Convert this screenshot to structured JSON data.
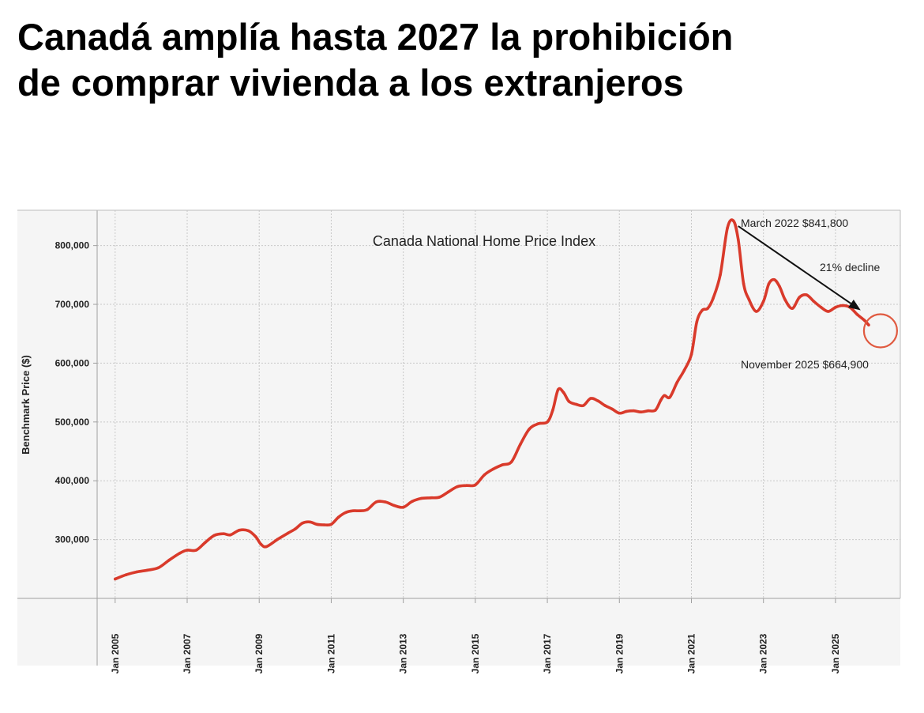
{
  "headline": {
    "line1": "Canadá amplía hasta 2027 la prohibición",
    "line2": "de comprar vivienda a los extranjeros"
  },
  "colors": {
    "series": "#d93a2b",
    "panel": "#f5f5f5",
    "grid": "#c8c8c8",
    "axis": "#a0a0a0",
    "text": "#222222",
    "annotation_circle": "#e05a40"
  },
  "chart_data": {
    "type": "line",
    "title": "Canada National Home Price Index",
    "xlabel": "",
    "ylabel": "Benchmark Price ($)",
    "ylim": [
      200000,
      860000
    ],
    "yticks": [
      300000,
      400000,
      500000,
      600000,
      700000,
      800000
    ],
    "ytick_labels": [
      "300,000",
      "400,000",
      "500,000",
      "600,000",
      "700,000",
      "800,000"
    ],
    "xlim": [
      2004.5,
      2026.8
    ],
    "xticks": [
      2005,
      2007,
      2009,
      2011,
      2013,
      2015,
      2017,
      2019,
      2021,
      2023,
      2025
    ],
    "xtick_labels": [
      "Jan 2005",
      "Jan 2007",
      "Jan 2009",
      "Jan 2011",
      "Jan 2013",
      "Jan 2015",
      "Jan 2017",
      "Jan 2019",
      "Jan 2021",
      "Jan 2023",
      "Jan 2025"
    ],
    "grid": true,
    "series": [
      {
        "name": "Benchmark Price",
        "x": [
          2005.0,
          2005.3,
          2005.6,
          2005.9,
          2006.2,
          2006.5,
          2006.8,
          2007.0,
          2007.25,
          2007.5,
          2007.75,
          2008.0,
          2008.2,
          2008.45,
          2008.7,
          2008.9,
          2009.05,
          2009.2,
          2009.5,
          2009.8,
          2010.0,
          2010.2,
          2010.4,
          2010.6,
          2010.8,
          2011.0,
          2011.2,
          2011.4,
          2011.6,
          2011.8,
          2012.0,
          2012.25,
          2012.5,
          2012.75,
          2013.0,
          2013.25,
          2013.5,
          2013.75,
          2014.0,
          2014.25,
          2014.5,
          2014.75,
          2015.0,
          2015.25,
          2015.5,
          2015.75,
          2016.0,
          2016.25,
          2016.5,
          2016.75,
          2017.0,
          2017.15,
          2017.3,
          2017.45,
          2017.6,
          2017.8,
          2018.0,
          2018.2,
          2018.4,
          2018.6,
          2018.8,
          2019.0,
          2019.2,
          2019.4,
          2019.6,
          2019.8,
          2020.0,
          2020.15,
          2020.25,
          2020.4,
          2020.6,
          2020.8,
          2021.0,
          2021.15,
          2021.3,
          2021.45,
          2021.6,
          2021.8,
          2022.0,
          2022.17,
          2022.3,
          2022.45,
          2022.6,
          2022.8,
          2023.0,
          2023.15,
          2023.3,
          2023.45,
          2023.6,
          2023.8,
          2024.0,
          2024.2,
          2024.4,
          2024.6,
          2024.8,
          2025.0,
          2025.2,
          2025.4,
          2025.6,
          2025.8,
          2025.92
        ],
        "values": [
          233000,
          240000,
          245000,
          248000,
          252000,
          265000,
          277000,
          282000,
          282000,
          295000,
          307000,
          310000,
          308000,
          316000,
          315000,
          305000,
          292000,
          288000,
          300000,
          311000,
          318000,
          328000,
          330000,
          326000,
          325000,
          326000,
          338000,
          346000,
          349000,
          349000,
          351000,
          364000,
          364000,
          358000,
          355000,
          365000,
          370000,
          371000,
          372000,
          381000,
          390000,
          392000,
          393000,
          410000,
          420000,
          427000,
          432000,
          462000,
          488000,
          497000,
          500000,
          520000,
          555000,
          550000,
          535000,
          530000,
          528000,
          540000,
          536000,
          528000,
          522000,
          515000,
          518000,
          519000,
          517000,
          519000,
          520000,
          537000,
          545000,
          542000,
          567000,
          588000,
          615000,
          670000,
          690000,
          693000,
          710000,
          750000,
          830000,
          841800,
          810000,
          735000,
          708000,
          688000,
          705000,
          735000,
          742000,
          730000,
          708000,
          693000,
          712000,
          716000,
          705000,
          695000,
          688000,
          695000,
          698000,
          695000,
          683000,
          673000,
          664900
        ]
      }
    ],
    "annotations": [
      {
        "text": "March 2022  $841,800",
        "x": 2022.17,
        "y": 841800
      },
      {
        "text": "21% decline"
      },
      {
        "text": "November 2025  $664,900",
        "x": 2025.92,
        "y": 664900
      }
    ],
    "arrow": {
      "from": {
        "x": 2022.3,
        "y": 833000
      },
      "to": {
        "x": 2025.7,
        "y": 690000
      }
    },
    "marker_circle": {
      "x": 2026.25,
      "y": 655000
    }
  }
}
